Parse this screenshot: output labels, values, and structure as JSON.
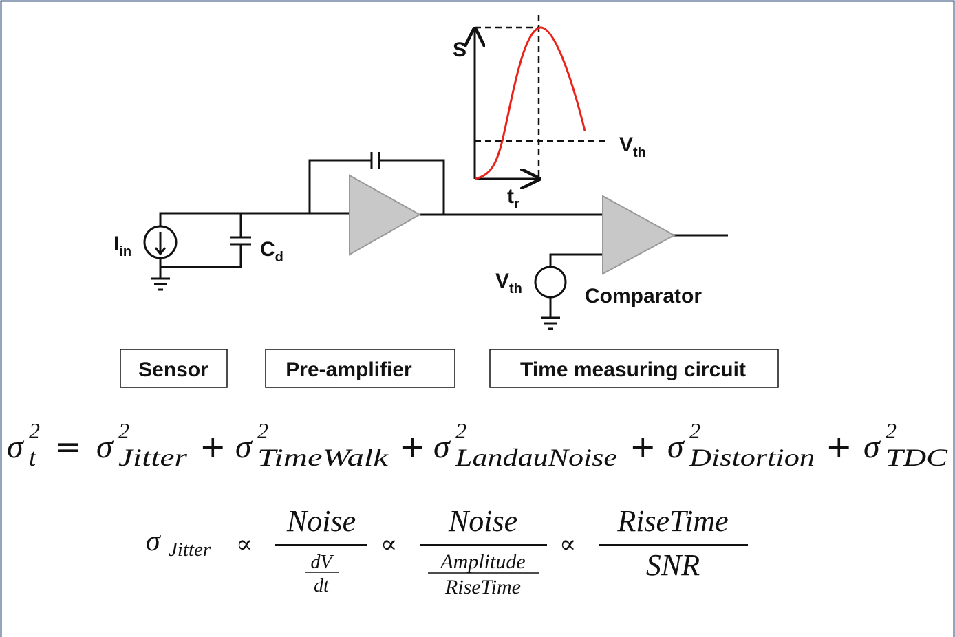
{
  "pulse": {
    "signal": "S",
    "threshold": {
      "symbol": "V",
      "subscript": "th"
    },
    "rise_time": {
      "symbol": "t",
      "subscript": "r"
    }
  },
  "circuit": {
    "current": {
      "symbol": "I",
      "subscript": "in"
    },
    "capacitance": {
      "symbol": "C",
      "subscript": "d"
    },
    "threshold": {
      "symbol": "V",
      "subscript": "th"
    },
    "comparator": "Comparator"
  },
  "blocks": [
    "Sensor",
    "Pre-amplifier",
    "Time measuring circuit"
  ],
  "equation1": {
    "sigma": "σ",
    "square": "2",
    "lhs_subscript": "t",
    "equals": "=",
    "plus": "+",
    "terms": [
      "Jitter",
      "TimeWalk",
      "LandauNoise",
      "Distortion",
      "TDC"
    ]
  },
  "equation2": {
    "sigma": "σ",
    "subscript": "Jitter",
    "proportional": "∝",
    "fractions": [
      {
        "numerator": "Noise",
        "denominator": {
          "numerator": "dV",
          "denominator": "dt"
        }
      },
      {
        "numerator": "Noise",
        "denominator": {
          "numerator": "Amplitude",
          "denominator": "RiseTime"
        }
      },
      {
        "numerator": "RiseTime",
        "denominator": "SNR"
      }
    ]
  }
}
